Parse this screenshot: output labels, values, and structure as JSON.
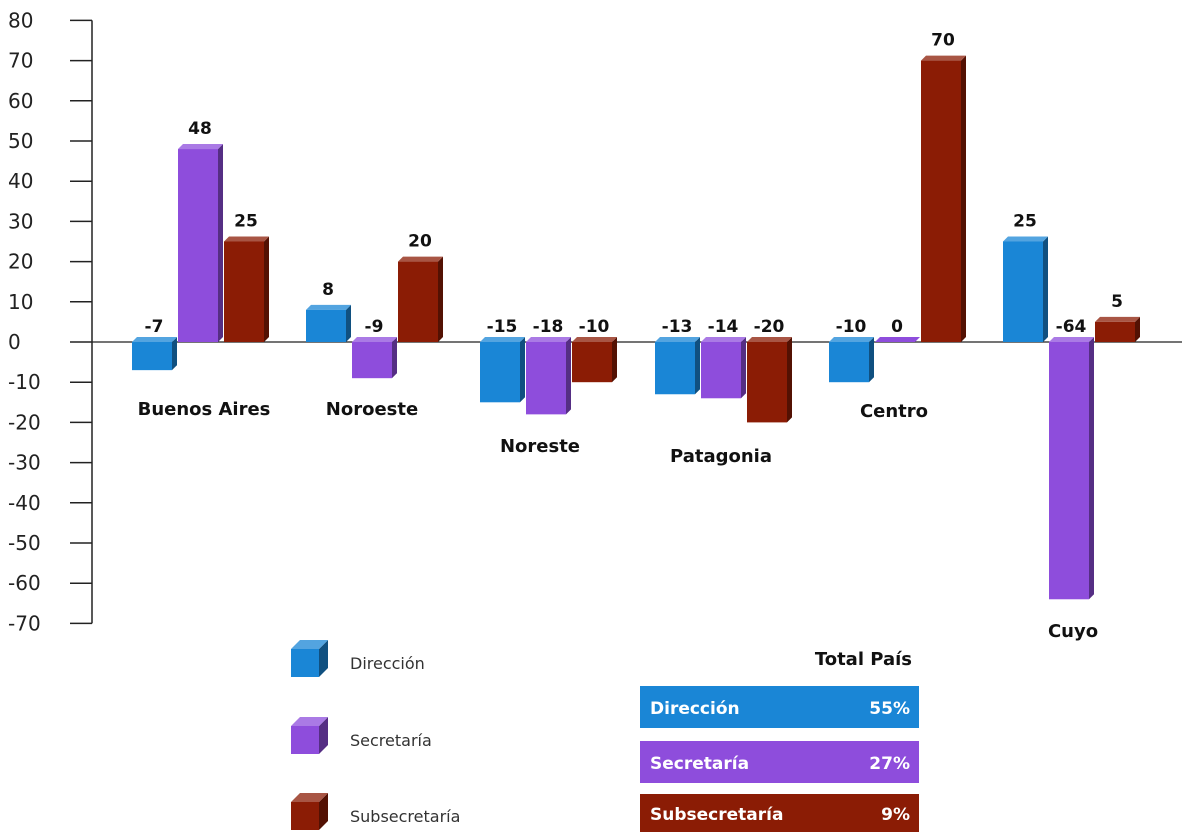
{
  "chart_data": {
    "type": "bar",
    "style": "3d",
    "categories": [
      "Buenos Aires",
      "Noroeste",
      "Noreste",
      "Patagonia",
      "Centro",
      "Cuyo"
    ],
    "series": [
      {
        "name": "Dirección",
        "color": "#1a86d6",
        "values": [
          -7,
          8,
          -15,
          -13,
          -10,
          25
        ]
      },
      {
        "name": "Secretaría",
        "color": "#8e4ddc",
        "values": [
          48,
          -9,
          -18,
          -14,
          0,
          -64
        ]
      },
      {
        "name": "Subsecretaría",
        "color": "#8b1c05",
        "values": [
          25,
          20,
          -10,
          -20,
          70,
          5
        ]
      }
    ],
    "yticks": [
      "80",
      "70",
      "60",
      "50",
      "40",
      "30",
      "20",
      "10",
      "0",
      "-10",
      "-20",
      "-30",
      "-40",
      "-50",
      "-60",
      "-70"
    ],
    "ylim": [
      -70,
      80
    ],
    "legend_placement": "bottom-left"
  },
  "total_pais": {
    "title": "Total País",
    "rows": [
      {
        "label": "Dirección",
        "value": "55%",
        "color": "#1a86d6"
      },
      {
        "label": "Secretaría",
        "value": "27%",
        "color": "#8e4ddc"
      },
      {
        "label": "Subsecretaría",
        "value": "9%",
        "color": "#8b1c05"
      }
    ]
  }
}
